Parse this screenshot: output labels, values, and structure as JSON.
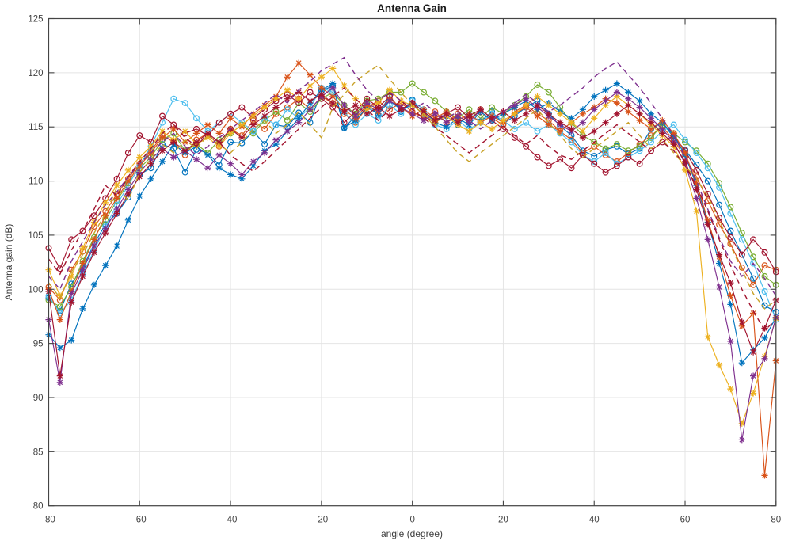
{
  "figure": {
    "background": "#ffffff",
    "axis_color": "#444444",
    "grid_color": "#e4e4e4",
    "tick_label_color": "#434343"
  },
  "chart_data": {
    "type": "line",
    "title": "Antenna Gain",
    "xlabel": "angle (degree)",
    "ylabel": "Antenna gain (dB)",
    "xlim": [
      -80,
      80
    ],
    "ylim": [
      80,
      125
    ],
    "xticks": [
      -80,
      -60,
      -40,
      -20,
      0,
      20,
      40,
      60,
      80
    ],
    "yticks": [
      80,
      85,
      90,
      95,
      100,
      105,
      110,
      115,
      120,
      125
    ],
    "grid": true,
    "legend_position": "none",
    "x": [
      -80,
      -77.5,
      -75,
      -72.5,
      -70,
      -67.5,
      -65,
      -62.5,
      -60,
      -57.5,
      -55,
      -52.5,
      -50,
      -47.5,
      -45,
      -42.5,
      -40,
      -37.5,
      -35,
      -32.5,
      -30,
      -27.5,
      -25,
      -22.5,
      -20,
      -17.5,
      -15,
      -12.5,
      -10,
      -7.5,
      -5,
      -2.5,
      0,
      2.5,
      5,
      7.5,
      10,
      12.5,
      15,
      17.5,
      20,
      22.5,
      25,
      27.5,
      30,
      32.5,
      35,
      37.5,
      40,
      42.5,
      45,
      47.5,
      50,
      52.5,
      55,
      57.5,
      60,
      62.5,
      65,
      67.5,
      70,
      72.5,
      75,
      77.5,
      80
    ],
    "series": [
      {
        "name": "circle-blue",
        "color": "#0072BD",
        "line": "solid",
        "marker": "o",
        "values": [
          99.2,
          98.0,
          100.5,
          102.0,
          104.2,
          106.0,
          107.0,
          108.5,
          110.6,
          111.2,
          113.4,
          113.0,
          110.8,
          112.9,
          112.6,
          111.5,
          113.6,
          113.5,
          114.6,
          113.4,
          115.2,
          115.0,
          116.3,
          115.4,
          118.3,
          118.8,
          114.9,
          116.0,
          117.2,
          116.1,
          117.9,
          116.4,
          117.5,
          116.2,
          115.6,
          116.0,
          115.2,
          116.1,
          115.5,
          116.4,
          115.3,
          116.0,
          116.8,
          117.4,
          116.2,
          115.1,
          114.2,
          112.8,
          112.3,
          112.9,
          113.2,
          112.5,
          113.0,
          114.8,
          115.4,
          114.0,
          112.9,
          111.5,
          110.0,
          107.8,
          105.4,
          103.2,
          101.0,
          98.5,
          97.9
        ]
      },
      {
        "name": "circle-orange",
        "color": "#D95319",
        "line": "solid",
        "marker": "o",
        "values": [
          100.2,
          99.0,
          101.8,
          103.5,
          105.8,
          107.2,
          108.8,
          110.2,
          111.6,
          112.8,
          114.2,
          113.6,
          112.4,
          113.8,
          114.4,
          113.2,
          114.8,
          114.2,
          115.6,
          114.8,
          116.2,
          116.8,
          117.6,
          116.6,
          117.8,
          117.2,
          116.2,
          115.4,
          116.8,
          117.4,
          116.6,
          117.2,
          116.4,
          115.8,
          116.4,
          115.4,
          116.2,
          115.6,
          116.6,
          115.8,
          115.2,
          116.4,
          117.0,
          116.2,
          115.6,
          114.6,
          113.8,
          112.6,
          113.2,
          112.4,
          111.8,
          112.6,
          113.4,
          114.2,
          115.0,
          113.8,
          112.2,
          110.4,
          108.2,
          106.0,
          104.2,
          102.0,
          100.4,
          102.2,
          101.8
        ]
      },
      {
        "name": "circle-green",
        "color": "#77AC30",
        "line": "solid",
        "marker": "o",
        "values": [
          99.0,
          98.4,
          100.2,
          102.6,
          104.8,
          106.4,
          108.2,
          109.8,
          111.2,
          112.2,
          113.8,
          114.4,
          112.8,
          113.4,
          112.6,
          113.8,
          114.4,
          115.2,
          114.4,
          115.6,
          116.4,
          115.6,
          117.2,
          116.4,
          117.6,
          118.2,
          117.0,
          116.2,
          117.4,
          117.6,
          118.2,
          118.2,
          119.0,
          118.2,
          117.4,
          116.4,
          115.8,
          116.6,
          115.8,
          116.8,
          116.2,
          117.0,
          117.8,
          118.9,
          118.2,
          116.8,
          115.4,
          114.2,
          113.6,
          113.0,
          113.4,
          112.8,
          113.2,
          114.0,
          115.2,
          114.4,
          113.6,
          112.8,
          111.6,
          109.8,
          107.6,
          105.2,
          103.0,
          101.2,
          100.4
        ]
      },
      {
        "name": "circle-cyan",
        "color": "#4DBEEE",
        "line": "solid",
        "marker": "o",
        "values": [
          99.4,
          97.8,
          99.0,
          101.4,
          103.6,
          105.8,
          107.8,
          109.6,
          111.4,
          113.2,
          115.4,
          117.6,
          117.2,
          115.8,
          114.6,
          115.4,
          116.2,
          115.4,
          114.6,
          115.8,
          115.2,
          116.6,
          115.8,
          116.8,
          118.6,
          118.2,
          116.4,
          115.2,
          116.2,
          115.6,
          117.0,
          116.2,
          117.4,
          116.6,
          115.2,
          114.8,
          115.6,
          114.8,
          115.4,
          116.2,
          115.6,
          114.8,
          115.4,
          114.6,
          115.2,
          114.4,
          113.6,
          112.4,
          111.8,
          112.6,
          111.6,
          112.2,
          112.8,
          113.6,
          114.6,
          115.2,
          113.8,
          112.6,
          111.2,
          109.4,
          107.0,
          104.6,
          102.4,
          99.8,
          97.2
        ]
      },
      {
        "name": "circle-maroon",
        "color": "#A2142F",
        "line": "solid",
        "marker": "o",
        "values": [
          103.8,
          101.9,
          104.6,
          105.4,
          106.8,
          108.4,
          110.2,
          112.6,
          114.2,
          113.6,
          116.0,
          115.2,
          114.4,
          114.8,
          114.2,
          115.4,
          116.2,
          116.8,
          115.8,
          116.6,
          117.4,
          118.0,
          117.2,
          118.2,
          117.6,
          116.8,
          115.4,
          116.4,
          117.6,
          116.8,
          117.8,
          116.6,
          117.2,
          116.0,
          115.4,
          116.2,
          116.8,
          115.8,
          116.4,
          115.6,
          114.8,
          114.0,
          113.2,
          112.2,
          111.4,
          112.0,
          111.2,
          112.4,
          111.6,
          110.8,
          111.4,
          112.2,
          111.6,
          112.8,
          113.6,
          114.2,
          112.8,
          111.0,
          108.8,
          106.6,
          104.8,
          103.2,
          104.6,
          103.4,
          101.6
        ]
      },
      {
        "name": "asterisk-blue",
        "color": "#0072BD",
        "line": "solid",
        "marker": "*",
        "values": [
          95.8,
          94.6,
          95.3,
          98.2,
          100.4,
          102.2,
          104.0,
          106.4,
          108.6,
          110.2,
          111.8,
          113.4,
          112.6,
          113.2,
          112.4,
          111.2,
          110.6,
          110.2,
          111.4,
          112.8,
          113.4,
          114.6,
          115.8,
          117.2,
          118.4,
          119.0,
          114.9,
          115.6,
          116.8,
          116.2,
          117.4,
          116.6,
          117.0,
          116.2,
          115.4,
          115.0,
          115.8,
          115.2,
          116.4,
          115.6,
          116.2,
          116.8,
          117.4,
          116.6,
          117.2,
          116.4,
          115.8,
          116.6,
          117.8,
          118.4,
          119.0,
          118.2,
          117.4,
          116.2,
          115.4,
          114.2,
          112.4,
          109.6,
          106.2,
          102.4,
          98.6,
          93.2,
          94.4,
          95.5,
          97.4
        ]
      },
      {
        "name": "asterisk-orange",
        "color": "#D95319",
        "line": "solid",
        "marker": "*",
        "values": [
          100.0,
          97.2,
          99.8,
          102.4,
          104.6,
          106.8,
          108.4,
          110.0,
          111.4,
          112.6,
          114.0,
          114.8,
          113.6,
          114.4,
          115.2,
          114.4,
          115.8,
          115.0,
          116.2,
          117.0,
          117.8,
          119.6,
          120.9,
          119.8,
          118.6,
          117.8,
          116.6,
          115.8,
          117.0,
          116.4,
          117.6,
          116.8,
          116.0,
          116.6,
          115.8,
          116.4,
          115.6,
          116.2,
          115.4,
          116.0,
          115.4,
          116.2,
          116.8,
          116.0,
          115.2,
          114.6,
          115.4,
          116.2,
          116.8,
          117.6,
          117.2,
          116.4,
          115.6,
          114.8,
          115.6,
          114.4,
          112.6,
          109.8,
          106.4,
          103.0,
          99.4,
          96.6,
          97.8,
          82.8,
          93.4
        ]
      },
      {
        "name": "asterisk-yellow",
        "color": "#EDB120",
        "line": "solid",
        "marker": "*",
        "values": [
          101.8,
          99.4,
          101.2,
          103.8,
          106.2,
          108.0,
          109.6,
          111.0,
          112.2,
          113.2,
          114.6,
          113.8,
          114.6,
          113.4,
          114.0,
          113.2,
          114.4,
          115.2,
          116.0,
          116.8,
          117.6,
          118.4,
          117.6,
          118.8,
          119.6,
          120.4,
          118.8,
          117.6,
          116.6,
          117.2,
          118.4,
          117.4,
          117.0,
          116.2,
          115.4,
          116.0,
          115.2,
          114.6,
          115.4,
          114.8,
          115.6,
          116.2,
          117.0,
          117.8,
          117.0,
          116.2,
          115.4,
          114.6,
          115.8,
          117.0,
          117.8,
          117.0,
          116.2,
          115.2,
          114.2,
          113.2,
          111.0,
          107.2,
          95.6,
          93.0,
          90.8,
          87.6,
          90.4,
          93.8,
          97.3
        ]
      },
      {
        "name": "asterisk-purple",
        "color": "#7E2F8E",
        "line": "solid",
        "marker": "*",
        "values": [
          97.2,
          91.4,
          99.6,
          101.8,
          104.0,
          105.6,
          107.4,
          109.2,
          110.8,
          112.0,
          113.0,
          112.2,
          112.8,
          112.0,
          111.2,
          112.4,
          111.6,
          110.6,
          111.8,
          112.6,
          113.8,
          114.6,
          115.4,
          116.6,
          117.8,
          118.6,
          117.0,
          116.0,
          117.2,
          116.6,
          117.4,
          116.8,
          116.2,
          115.6,
          116.2,
          115.4,
          116.0,
          115.4,
          116.6,
          115.8,
          116.4,
          117.0,
          117.6,
          116.8,
          116.0,
          115.2,
          114.6,
          115.4,
          116.6,
          117.4,
          118.2,
          117.6,
          116.8,
          115.8,
          114.8,
          113.6,
          111.6,
          108.4,
          104.6,
          100.2,
          95.2,
          86.1,
          92.0,
          93.6,
          97.4
        ]
      },
      {
        "name": "asterisk-maroon",
        "color": "#A2142F",
        "line": "solid",
        "marker": "*",
        "values": [
          99.8,
          92.0,
          98.8,
          101.2,
          103.4,
          105.2,
          107.0,
          108.8,
          110.4,
          111.6,
          112.8,
          113.6,
          112.8,
          113.6,
          114.4,
          113.6,
          114.8,
          114.0,
          115.2,
          116.0,
          116.8,
          117.6,
          118.2,
          117.4,
          118.0,
          117.2,
          116.4,
          117.0,
          116.2,
          116.8,
          116.0,
          116.6,
          117.2,
          116.4,
          115.6,
          116.2,
          115.4,
          116.0,
          116.6,
          115.8,
          116.4,
          115.6,
          116.2,
          117.0,
          116.2,
          115.4,
          114.8,
          114.0,
          114.6,
          115.4,
          116.2,
          117.0,
          116.2,
          115.4,
          114.4,
          113.4,
          111.8,
          109.2,
          106.0,
          103.2,
          100.6,
          97.0,
          94.2,
          96.4,
          99.0
        ]
      },
      {
        "name": "dashed-yellow",
        "color": "#C8A228",
        "line": "dashed",
        "marker": "none",
        "values": [
          100.6,
          99.2,
          101.6,
          103.2,
          105.2,
          107.0,
          109.4,
          108.2,
          110.8,
          112.0,
          113.4,
          112.6,
          113.8,
          113.0,
          114.2,
          113.4,
          112.6,
          113.6,
          114.8,
          115.6,
          114.4,
          115.2,
          116.4,
          115.2,
          114.0,
          116.8,
          118.0,
          119.2,
          120.0,
          120.7,
          119.4,
          118.2,
          117.0,
          116.2,
          115.0,
          113.8,
          112.6,
          111.8,
          112.6,
          113.4,
          114.2,
          115.0,
          115.8,
          116.6,
          115.4,
          114.2,
          113.0,
          112.2,
          113.0,
          113.8,
          114.6,
          115.4,
          114.2,
          113.0,
          113.8,
          112.6,
          111.4,
          110.2,
          108.6,
          106.4,
          104.0,
          101.8,
          99.6,
          98.2,
          99.0
        ]
      },
      {
        "name": "dashed-purple",
        "color": "#7E2F8E",
        "line": "dashed",
        "marker": "none",
        "values": [
          101.2,
          100.0,
          102.6,
          104.4,
          106.2,
          107.8,
          109.0,
          110.4,
          111.6,
          112.6,
          113.6,
          114.4,
          113.2,
          112.4,
          113.2,
          114.0,
          114.8,
          115.6,
          116.4,
          117.2,
          118.0,
          117.2,
          118.4,
          119.2,
          120.2,
          120.8,
          121.4,
          119.8,
          118.4,
          117.4,
          118.2,
          117.4,
          116.6,
          117.2,
          116.4,
          115.8,
          116.4,
          115.6,
          114.8,
          115.6,
          116.4,
          117.2,
          118.0,
          117.2,
          116.4,
          117.0,
          117.8,
          118.6,
          119.6,
          120.4,
          121.0,
          119.8,
          118.6,
          117.2,
          115.8,
          114.2,
          112.2,
          110.0,
          107.4,
          104.8,
          102.6,
          101.2,
          102.4,
          101.0,
          99.4
        ]
      },
      {
        "name": "dashed-maroon",
        "color": "#A2142F",
        "line": "dashed",
        "marker": "none",
        "values": [
          102.8,
          101.4,
          103.6,
          105.4,
          107.4,
          109.6,
          108.6,
          110.4,
          111.8,
          113.0,
          114.4,
          115.2,
          114.0,
          113.2,
          114.4,
          113.6,
          112.4,
          111.6,
          110.9,
          111.8,
          112.8,
          113.8,
          114.8,
          115.8,
          116.8,
          117.8,
          118.6,
          117.6,
          116.6,
          115.6,
          116.6,
          117.4,
          116.6,
          115.8,
          115.0,
          114.2,
          113.4,
          112.6,
          113.4,
          114.2,
          115.0,
          114.2,
          113.4,
          114.2,
          113.2,
          112.4,
          112.0,
          112.8,
          113.6,
          114.4,
          115.2,
          114.4,
          113.6,
          112.8,
          113.6,
          112.8,
          111.4,
          109.6,
          107.2,
          104.6,
          102.2,
          100.0,
          98.0,
          96.2,
          97.2
        ]
      }
    ]
  }
}
